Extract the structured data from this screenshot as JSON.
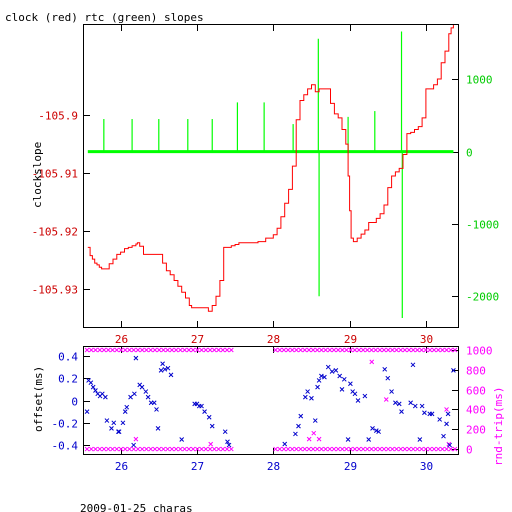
{
  "chart_data": [
    {
      "type": "line",
      "title": "clock (red) rtc (green) slopes",
      "ylabel_left": "clockslope",
      "x_ticks": [
        26,
        27,
        28,
        29,
        30
      ],
      "xlim": [
        25.52,
        30.42
      ],
      "ylim_left": [
        -105.9365,
        -105.8845
      ],
      "y_ticks_left": [
        -105.9,
        -105.91,
        -105.92,
        -105.93
      ],
      "ylim_right": [
        -2425,
        1750
      ],
      "y_ticks_right": [
        1000,
        0,
        -1000,
        -2000
      ],
      "series": [
        {
          "color": "#ff0000",
          "axis": "left",
          "x": [
            25.57,
            25.6,
            25.63,
            25.66,
            25.69,
            25.72,
            25.75,
            25.8,
            25.85,
            25.9,
            25.95,
            26.0,
            26.05,
            26.1,
            26.15,
            26.2,
            26.22,
            26.25,
            26.3,
            26.35,
            26.4,
            26.45,
            26.5,
            26.55,
            26.6,
            26.65,
            26.7,
            26.75,
            26.8,
            26.85,
            26.9,
            26.93,
            26.96,
            27.0,
            27.05,
            27.1,
            27.15,
            27.2,
            27.25,
            27.3,
            27.35,
            27.4,
            27.45,
            27.5,
            27.55,
            27.6,
            27.7,
            27.8,
            27.9,
            28.0,
            28.05,
            28.1,
            28.15,
            28.2,
            28.25,
            28.3,
            28.35,
            28.4,
            28.45,
            28.5,
            28.55,
            28.6,
            28.65,
            28.7,
            28.75,
            28.8,
            28.85,
            28.9,
            28.95,
            28.98,
            29.0,
            29.02,
            29.05,
            29.1,
            29.15,
            29.2,
            29.25,
            29.3,
            29.35,
            29.4,
            29.45,
            29.5,
            29.55,
            29.6,
            29.65,
            29.7,
            29.75,
            29.8,
            29.85,
            29.9,
            29.95,
            30.0,
            30.05,
            30.1,
            30.15,
            30.2,
            30.25,
            30.3,
            30.33,
            30.36
          ],
          "y": [
            -105.9228,
            -105.9242,
            -105.9248,
            -105.9255,
            -105.9258,
            -105.9262,
            -105.9265,
            -105.9265,
            -105.9256,
            -105.9248,
            -105.924,
            -105.9236,
            -105.923,
            -105.9228,
            -105.9225,
            -105.9222,
            -105.922,
            -105.9226,
            -105.924,
            -105.924,
            -105.924,
            -105.924,
            -105.924,
            -105.9255,
            -105.9268,
            -105.9275,
            -105.9285,
            -105.9295,
            -105.9305,
            -105.9315,
            -105.9328,
            -105.9332,
            -105.9332,
            -105.9332,
            -105.9332,
            -105.9332,
            -105.9338,
            -105.9328,
            -105.9312,
            -105.9285,
            -105.9228,
            -105.9228,
            -105.9225,
            -105.9223,
            -105.922,
            -105.922,
            -105.922,
            -105.9218,
            -105.9212,
            -105.9206,
            -105.9195,
            -105.9175,
            -105.9152,
            -105.9128,
            -105.9088,
            -105.9008,
            -105.8975,
            -105.8965,
            -105.8955,
            -105.8948,
            -105.896,
            -105.8955,
            -105.8955,
            -105.8955,
            -105.898,
            -105.8998,
            -105.9005,
            -105.9025,
            -105.905,
            -105.9105,
            -105.9165,
            -105.9212,
            -105.9218,
            -105.9212,
            -105.9205,
            -105.9198,
            -105.9185,
            -105.9185,
            -105.9178,
            -105.917,
            -105.9155,
            -105.9125,
            -105.9105,
            -105.9098,
            -105.9092,
            -105.9068,
            -105.9032,
            -105.903,
            -105.9025,
            -105.902,
            -105.9005,
            -105.8955,
            -105.8955,
            -105.8948,
            -105.8938,
            -105.891,
            -105.889,
            -105.886,
            -105.885,
            -105.8845
          ]
        },
        {
          "color": "#00ff00",
          "axis": "right",
          "baseline": 0,
          "x_range": [
            25.57,
            30.36
          ],
          "spikes": [
            {
              "x": 25.78,
              "value": 450
            },
            {
              "x": 26.15,
              "value": 450
            },
            {
              "x": 26.5,
              "value": 450
            },
            {
              "x": 26.88,
              "value": 450
            },
            {
              "x": 27.2,
              "value": 450
            },
            {
              "x": 27.53,
              "value": 680
            },
            {
              "x": 27.88,
              "value": 680
            },
            {
              "x": 28.26,
              "value": 380
            },
            {
              "x": 28.59,
              "value": 1560
            },
            {
              "x": 28.6,
              "value": -2000
            },
            {
              "x": 28.98,
              "value": 480
            },
            {
              "x": 29.33,
              "value": 560
            },
            {
              "x": 29.68,
              "value": 1660
            },
            {
              "x": 29.69,
              "value": -2300
            }
          ]
        }
      ]
    },
    {
      "type": "scatter",
      "ylabel_left": "offset(ms)",
      "ylabel_right": "rnd-trip(ms)",
      "xlabel": "2009-01-25 charas",
      "x_ticks": [
        26,
        27,
        28,
        29,
        30
      ],
      "xlim": [
        25.52,
        30.42
      ],
      "ylim_left": [
        -0.48,
        0.48
      ],
      "y_ticks_left": [
        0.4,
        0.2,
        0,
        -0.2,
        -0.4
      ],
      "ylim_right": [
        -50,
        1030
      ],
      "y_ticks_right": [
        1000,
        800,
        600,
        400,
        200,
        0
      ],
      "series": [
        {
          "color": "#0000cc",
          "marker": "x",
          "axis": "left",
          "points": [
            [
              25.56,
              -0.1
            ],
            [
              25.58,
              0.18
            ],
            [
              25.61,
              0.16
            ],
            [
              25.64,
              0.12
            ],
            [
              25.67,
              0.09
            ],
            [
              25.7,
              0.06
            ],
            [
              25.73,
              0.04
            ],
            [
              25.76,
              0.06
            ],
            [
              25.8,
              0.03
            ],
            [
              25.82,
              -0.18
            ],
            [
              25.88,
              -0.25
            ],
            [
              25.91,
              -0.2
            ],
            [
              25.97,
              -0.28
            ],
            [
              25.98,
              -0.28
            ],
            [
              26.03,
              -0.2
            ],
            [
              26.06,
              -0.1
            ],
            [
              26.08,
              -0.06
            ],
            [
              26.13,
              0.03
            ],
            [
              26.17,
              -0.4
            ],
            [
              26.18,
              0.06
            ],
            [
              26.2,
              0.38
            ],
            [
              26.25,
              0.14
            ],
            [
              26.28,
              0.12
            ],
            [
              26.33,
              0.08
            ],
            [
              26.36,
              0.03
            ],
            [
              26.4,
              -0.02
            ],
            [
              26.44,
              -0.02
            ],
            [
              26.47,
              -0.08
            ],
            [
              26.49,
              -0.25
            ],
            [
              26.53,
              0.27
            ],
            [
              26.55,
              0.33
            ],
            [
              26.58,
              0.28
            ],
            [
              26.62,
              0.29
            ],
            [
              26.66,
              0.23
            ],
            [
              26.8,
              -0.35
            ],
            [
              26.97,
              -0.03
            ],
            [
              27.0,
              -0.03
            ],
            [
              27.03,
              -0.05
            ],
            [
              27.06,
              -0.05
            ],
            [
              27.1,
              -0.1
            ],
            [
              27.16,
              -0.15
            ],
            [
              27.2,
              -0.23
            ],
            [
              27.37,
              -0.28
            ],
            [
              27.4,
              -0.37
            ],
            [
              27.42,
              -0.4
            ],
            [
              28.15,
              -0.39
            ],
            [
              28.29,
              -0.3
            ],
            [
              28.33,
              -0.23
            ],
            [
              28.36,
              -0.14
            ],
            [
              28.42,
              0.03
            ],
            [
              28.45,
              0.08
            ],
            [
              28.5,
              0.02
            ],
            [
              28.55,
              -0.18
            ],
            [
              28.58,
              0.12
            ],
            [
              28.6,
              0.18
            ],
            [
              28.63,
              0.22
            ],
            [
              28.67,
              0.21
            ],
            [
              28.72,
              0.3
            ],
            [
              28.77,
              0.26
            ],
            [
              28.82,
              0.27
            ],
            [
              28.87,
              0.22
            ],
            [
              28.9,
              0.1
            ],
            [
              28.93,
              0.19
            ],
            [
              28.98,
              -0.35
            ],
            [
              29.01,
              0.15
            ],
            [
              29.04,
              0.08
            ],
            [
              29.07,
              0.06
            ],
            [
              29.11,
              0.0
            ],
            [
              29.2,
              0.04
            ],
            [
              29.25,
              -0.35
            ],
            [
              29.3,
              -0.25
            ],
            [
              29.35,
              -0.27
            ],
            [
              29.38,
              -0.28
            ],
            [
              29.46,
              0.28
            ],
            [
              29.5,
              0.2
            ],
            [
              29.55,
              0.08
            ],
            [
              29.6,
              -0.02
            ],
            [
              29.65,
              -0.03
            ],
            [
              29.68,
              -0.1
            ],
            [
              29.8,
              -0.02
            ],
            [
              29.83,
              0.32
            ],
            [
              29.86,
              -0.05
            ],
            [
              29.92,
              -0.35
            ],
            [
              29.95,
              -0.05
            ],
            [
              29.98,
              -0.11
            ],
            [
              30.05,
              -0.12
            ],
            [
              30.08,
              -0.12
            ],
            [
              30.18,
              -0.17
            ],
            [
              30.23,
              -0.32
            ],
            [
              30.27,
              -0.21
            ],
            [
              30.29,
              -0.12
            ],
            [
              30.31,
              -0.4
            ],
            [
              30.36,
              0.27
            ]
          ]
        },
        {
          "color": "#ff00ff",
          "marker": "x",
          "axis": "right",
          "points": [
            [
              26.2,
              100
            ],
            [
              27.18,
              50
            ],
            [
              28.47,
              100
            ],
            [
              28.53,
              160
            ],
            [
              28.6,
              100
            ],
            [
              29.29,
              880
            ],
            [
              29.48,
              500
            ],
            [
              30.27,
              400
            ],
            [
              30.3,
              50
            ]
          ],
          "band_high": {
            "value": 1000,
            "segments": [
              [
                25.56,
                27.45
              ],
              [
                28.03,
                30.38
              ]
            ]
          },
          "band_low": {
            "value": 0,
            "segments": [
              [
                25.56,
                27.45
              ],
              [
                28.03,
                30.38
              ]
            ]
          }
        }
      ]
    }
  ]
}
